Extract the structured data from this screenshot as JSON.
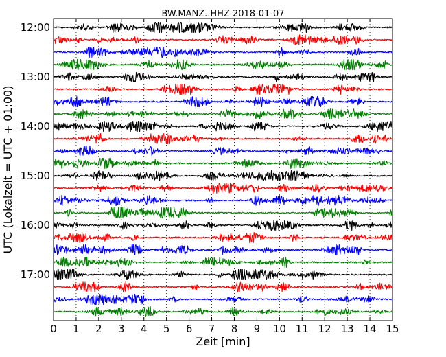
{
  "chart_data": {
    "type": "line",
    "title": "BW.MANZ..HHZ 2018-01-07",
    "xlabel": "Zeit  [min]",
    "ylabel": "UTC (Lokalzeit = UTC + 01:00)",
    "xlim": [
      0,
      15
    ],
    "x_ticks": [
      "0",
      "1",
      "2",
      "3",
      "4",
      "5",
      "6",
      "7",
      "8",
      "9",
      "10",
      "11",
      "12",
      "13",
      "14",
      "15"
    ],
    "y_ticks": [
      "12:00",
      "13:00",
      "14:00",
      "15:00",
      "16:00",
      "17:00"
    ],
    "grid": "vertical dotted at each minute",
    "trace_colors": [
      "#000000",
      "#ff0000",
      "#0000ff",
      "#007f00"
    ],
    "traces_start": [
      "12:00",
      "12:15",
      "12:30",
      "12:45",
      "13:00",
      "13:15",
      "13:30",
      "13:45",
      "14:00",
      "14:15",
      "14:30",
      "14:45",
      "15:00",
      "15:15",
      "15:30",
      "15:45",
      "16:00",
      "16:15",
      "16:30",
      "16:45",
      "17:00",
      "17:15",
      "17:30",
      "17:45"
    ],
    "trace_minutes": 15
  }
}
